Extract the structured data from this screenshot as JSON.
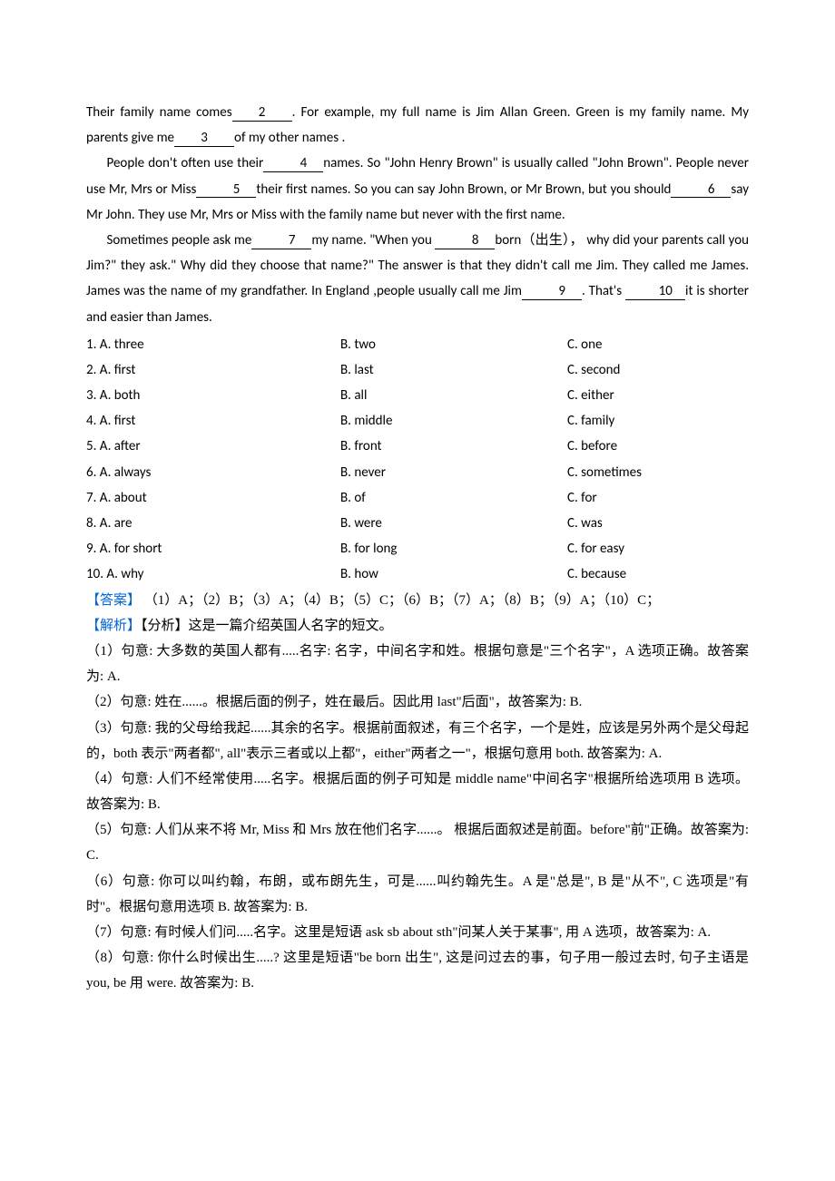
{
  "passage": {
    "p1_a": "Their family name comes",
    "p1_b": ". For example, my full name is Jim Allan Green. Green is my family name. My parents give me",
    "p1_c": "of my other names .",
    "p2_a": "People don't often use their",
    "p2_b": "names. So \"John Henry Brown\" is usually called \"John Brown\". People never use Mr, Mrs or Miss",
    "p2_c": "their first names. So you can say John Brown, or Mr Brown, but you should",
    "p2_d": "say Mr John. They use Mr, Mrs or Miss with the family name but never with the first name.",
    "p3_a": "Sometimes people ask me",
    "p3_b": "my name. \"When you ",
    "p3_c": "born（出生）， why did your parents call you Jim?\" they ask.\" Why did they choose that name?\" The answer is that they didn't call me Jim. They called me James. James was the name of my grandfather. In England ,people usually call me Jim",
    "p3_d": ". That's ",
    "p3_e": "it is shorter and easier than James."
  },
  "blanks": {
    "b2": "2",
    "b3": "3",
    "b4": "4",
    "b5": "5",
    "b6": "6",
    "b7": "7",
    "b8": "8",
    "b9": "9",
    "b10": "10"
  },
  "choices": [
    {
      "n": "1",
      "a": "A. three",
      "b": "B. two",
      "c": "C. one"
    },
    {
      "n": "2",
      "a": "A. first",
      "b": "B. last",
      "c": "C. second"
    },
    {
      "n": "3",
      "a": "A. both",
      "b": "B. all",
      "c": "C. either"
    },
    {
      "n": "4",
      "a": "A. first",
      "b": "B. middle",
      "c": "C. family"
    },
    {
      "n": "5",
      "a": "A. after",
      "b": "B. front",
      "c": "C. before"
    },
    {
      "n": "6",
      "a": "A. always",
      "b": "B. never",
      "c": "C. sometimes"
    },
    {
      "n": "7",
      "a": "A. about",
      "b": "B. of",
      "c": "C. for"
    },
    {
      "n": "8",
      "a": "A. are",
      "b": "B. were",
      "c": "C. was"
    },
    {
      "n": "9",
      "a": "A. for short",
      "b": "B. for long",
      "c": "C. for easy"
    },
    {
      "n": "10",
      "a": "A. why",
      "b": "B. how",
      "c": "C. because"
    }
  ],
  "answers": {
    "label": "【答案】",
    "text": " （1）A；（2）B；（3）A；（4）B；（5）C；（6）B；（7）A；（8）B；（9）A；（10）C；"
  },
  "analysis": {
    "label": "【解析】",
    "intro": "【分析】这是一篇介绍英国人名字的短文。",
    "items": [
      "（1）句意: 大多数的英国人都有.....名字: 名字，中间名字和姓。根据句意是\"三个名字\"，A 选项正确。故答案为: A.",
      "（2）句意: 姓在......。根据后面的例子，姓在最后。因此用 last\"后面\"，故答案为: B.",
      "（3）句意: 我的父母给我起......其余的名字。根据前面叙述，有三个名字，一个是姓，应该是另外两个是父母起的，both 表示\"两者都\", all\"表示三者或以上都\"，either\"两者之一\"，根据句意用 both. 故答案为: A.",
      "（4）句意: 人们不经常使用.....名字。根据后面的例子可知是 middle name\"中间名字\"根据所给选项用 B 选项。故答案为: B.",
      "（5）句意: 人们从来不将 Mr, Miss 和 Mrs 放在他们名字......。 根据后面叙述是前面。before\"前\"正确。故答案为: C.",
      "（6）句意: 你可以叫约翰，布朗，或布朗先生，可是......叫约翰先生。A 是\"总是\", B 是\"从不\", C 选项是\"有时\"。根据句意用选项 B. 故答案为: B.",
      "（7）句意: 有时候人们问.....名字。这里是短语 ask sb about sth\"问某人关于某事\", 用 A 选项，故答案为: A.",
      "（8）句意: 你什么时候出生.....? 这里是短语\"be born 出生\", 这是问过去的事，句子用一般过去时, 句子主语是 you, be 用 were. 故答案为: B."
    ]
  },
  "colors": {
    "link": "#0066d6",
    "text": "#000000",
    "bg": "#ffffff"
  }
}
